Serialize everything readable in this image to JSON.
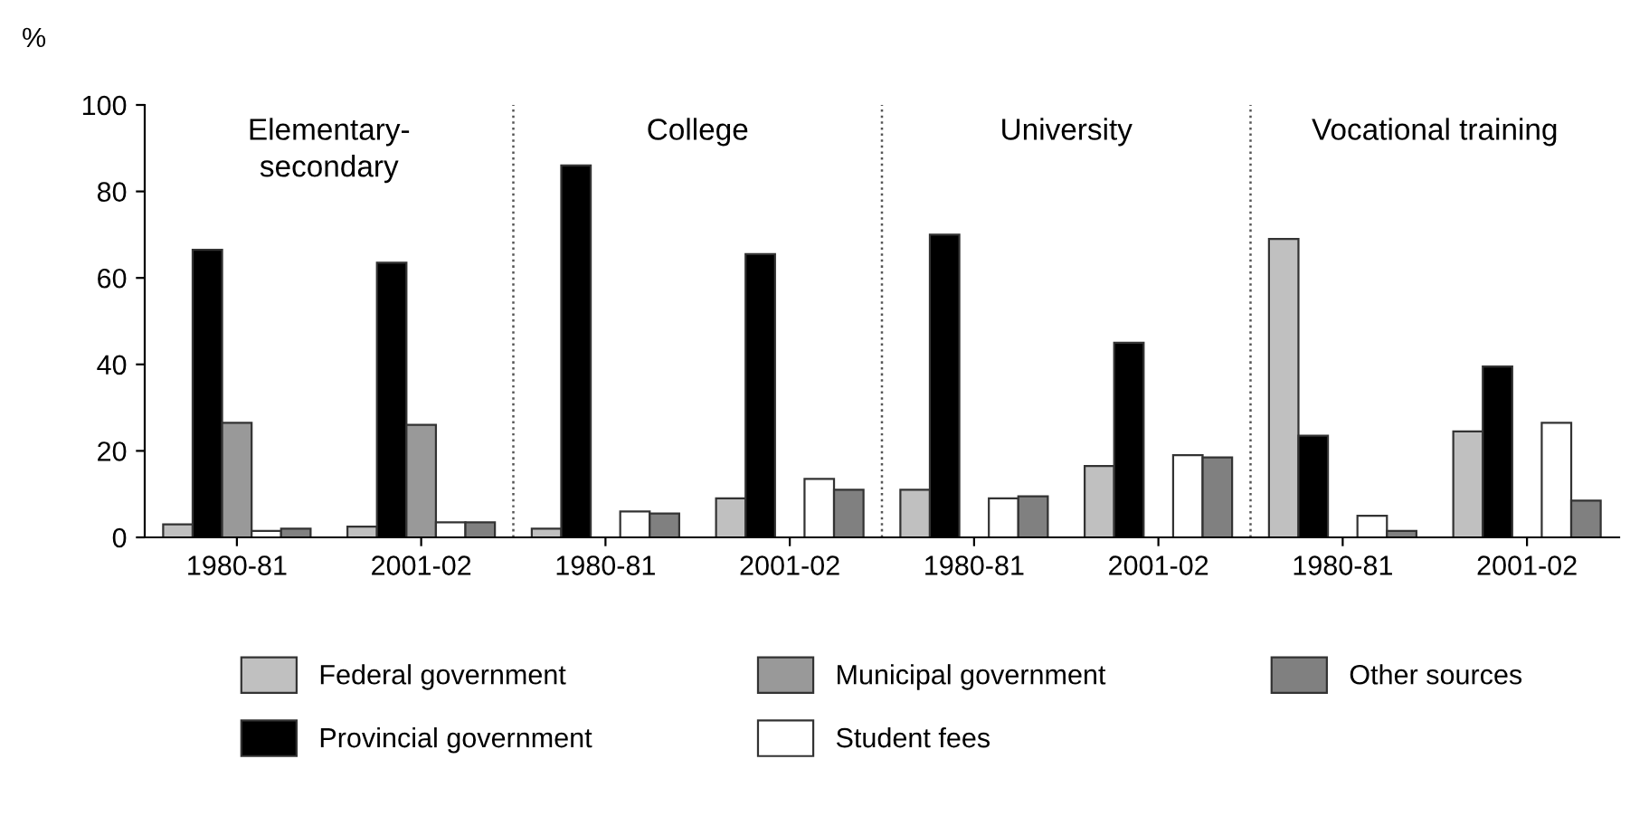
{
  "chart_data": {
    "type": "bar",
    "ylabel": "%",
    "categories": [
      "1980-81",
      "2001-02",
      "1980-81",
      "2001-02",
      "1980-81",
      "2001-02",
      "1980-81",
      "2001-02"
    ],
    "series": [
      {
        "name": "Federal government",
        "color": "#c0c0c0",
        "values": [
          3,
          2.5,
          2,
          9,
          11,
          16.5,
          69,
          24.5
        ]
      },
      {
        "name": "Provincial government",
        "color": "#000000",
        "values": [
          66.5,
          63.5,
          86,
          65.5,
          70,
          45,
          23.5,
          39.5
        ]
      },
      {
        "name": "Municipal government",
        "color": "#999999",
        "values": [
          26.5,
          26,
          null,
          null,
          null,
          null,
          null,
          null
        ]
      },
      {
        "name": "Student fees",
        "color": "#ffffff",
        "values": [
          1.5,
          3.5,
          6,
          13.5,
          9,
          19,
          5,
          26.5
        ]
      },
      {
        "name": "Other sources",
        "color": "#808080",
        "values": [
          2,
          3.5,
          5.5,
          11,
          9.5,
          18.5,
          1.5,
          8.5
        ]
      }
    ],
    "annotations": [
      "Elementary-\nsecondary",
      "College",
      "University",
      "Vocational training"
    ],
    "ylim": [
      0,
      100
    ],
    "yticks": [
      0,
      20,
      40,
      60,
      80,
      100
    ],
    "grid": false,
    "legend": "bottom"
  }
}
